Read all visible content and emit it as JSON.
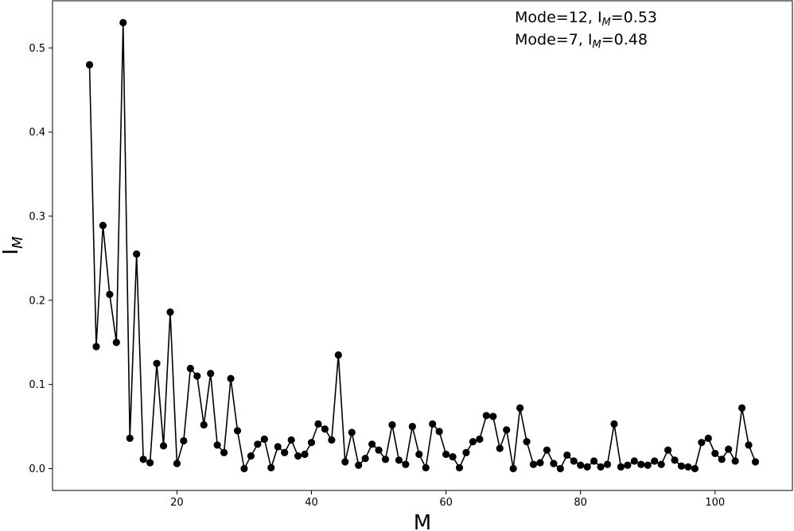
{
  "chart_data": {
    "type": "line",
    "xlabel": "M",
    "ylabel": "I",
    "ylabel_subscript": "M",
    "xlim": [
      1.5,
      111.5
    ],
    "ylim": [
      -0.026,
      0.556
    ],
    "xticks": [
      20,
      40,
      60,
      80,
      100
    ],
    "yticks": [
      0.0,
      0.1,
      0.2,
      0.3,
      0.4,
      0.5
    ],
    "grid": false,
    "series_color": "#000000",
    "annotations": [
      {
        "prefix": "Mode=12, I",
        "sub": "M",
        "suffix": "=0.53"
      },
      {
        "prefix": "Mode=7, I",
        "sub": "M",
        "suffix": "=0.48"
      }
    ],
    "x": [
      7,
      8,
      9,
      10,
      11,
      12,
      13,
      14,
      15,
      16,
      17,
      18,
      19,
      20,
      21,
      22,
      23,
      24,
      25,
      26,
      27,
      28,
      29,
      30,
      31,
      32,
      33,
      34,
      35,
      36,
      37,
      38,
      39,
      40,
      41,
      42,
      43,
      44,
      45,
      46,
      47,
      48,
      49,
      50,
      51,
      52,
      53,
      54,
      55,
      56,
      57,
      58,
      59,
      60,
      61,
      62,
      63,
      64,
      65,
      66,
      67,
      68,
      69,
      70,
      71,
      72,
      73,
      74,
      75,
      76,
      77,
      78,
      79,
      80,
      81,
      82,
      83,
      84,
      85,
      86,
      87,
      88,
      89,
      90,
      91,
      92,
      93,
      94,
      95,
      96,
      97,
      98,
      99,
      100,
      101,
      102,
      103,
      104,
      105,
      106
    ],
    "y": [
      0.48,
      0.145,
      0.289,
      0.207,
      0.15,
      0.53,
      0.036,
      0.255,
      0.011,
      0.007,
      0.125,
      0.027,
      0.186,
      0.006,
      0.033,
      0.119,
      0.11,
      0.052,
      0.113,
      0.028,
      0.019,
      0.107,
      0.045,
      0.0,
      0.015,
      0.029,
      0.035,
      0.001,
      0.026,
      0.019,
      0.034,
      0.015,
      0.017,
      0.031,
      0.053,
      0.047,
      0.034,
      0.135,
      0.008,
      0.043,
      0.004,
      0.012,
      0.029,
      0.022,
      0.011,
      0.052,
      0.01,
      0.005,
      0.05,
      0.017,
      0.001,
      0.053,
      0.044,
      0.017,
      0.014,
      0.001,
      0.019,
      0.032,
      0.035,
      0.063,
      0.062,
      0.024,
      0.046,
      0.0,
      0.072,
      0.032,
      0.005,
      0.007,
      0.022,
      0.006,
      0.0,
      0.016,
      0.009,
      0.004,
      0.002,
      0.009,
      0.002,
      0.005,
      0.053,
      0.002,
      0.004,
      0.009,
      0.005,
      0.004,
      0.009,
      0.005,
      0.022,
      0.01,
      0.003,
      0.002,
      0.0,
      0.031,
      0.036,
      0.018,
      0.011,
      0.023,
      0.009,
      0.072,
      0.028,
      0.008
    ]
  }
}
